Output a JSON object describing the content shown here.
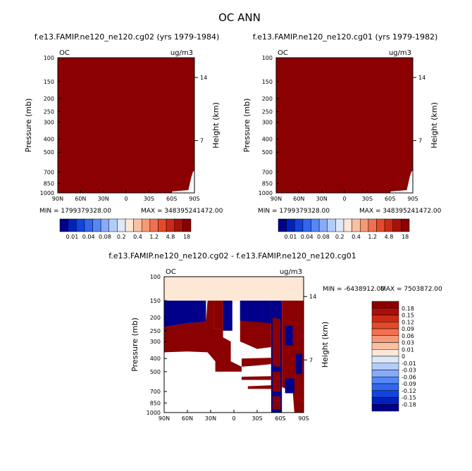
{
  "main_title": "OC ANN",
  "colors": {
    "dark_red": "#8b0000",
    "light_peach": "#fde7d5",
    "navy": "#00008b"
  },
  "chart_data": [
    {
      "id": "panel1",
      "type": "heatmap",
      "title": "f.e13.FAMIP.ne120_ne120.cg02 (yrs 1979-1984)",
      "left_label": "OC",
      "right_label": "ug/m3",
      "xlabel": "",
      "ylabel": "Pressure (mb)",
      "y2label": "Height (km)",
      "x_ticks": [
        "90N",
        "60N",
        "30N",
        "0",
        "30S",
        "60S",
        "90S"
      ],
      "y_ticks": [
        100,
        150,
        200,
        250,
        300,
        400,
        500,
        700,
        850,
        1000
      ],
      "y2_ticks": [
        14,
        7
      ],
      "ylim": [
        100,
        1000
      ],
      "stats": {
        "min": "MIN = 1799379328.00",
        "max": "MAX = 348395241472.00"
      },
      "colorbar": {
        "orientation": "horizontal",
        "labels": [
          "0.01",
          "0.04",
          "0.08",
          "0.2",
          "0.4",
          "1.2",
          "4.8",
          "18"
        ],
        "colors": [
          "#00008b",
          "#0022bb",
          "#1144dd",
          "#3366ee",
          "#5588f5",
          "#88aaf8",
          "#b3cdf9",
          "#dde9fb",
          "#fde7d5",
          "#f9c0a2",
          "#f59a78",
          "#f07050",
          "#e44a2a",
          "#cc2a16",
          "#a8100a",
          "#8b0000"
        ]
      },
      "field": "uniform maximum (dark red) everywhere; missing data near surface south of 60S"
    },
    {
      "id": "panel2",
      "type": "heatmap",
      "title": "f.e13.FAMIP.ne120_ne120.cg01 (yrs 1979-1982)",
      "left_label": "OC",
      "right_label": "ug/m3",
      "xlabel": "",
      "ylabel": "Pressure (mb)",
      "y2label": "Height (km)",
      "x_ticks": [
        "90N",
        "60N",
        "30N",
        "0",
        "30S",
        "60S",
        "90S"
      ],
      "y_ticks": [
        100,
        150,
        200,
        250,
        300,
        400,
        500,
        700,
        850,
        1000
      ],
      "y2_ticks": [
        14,
        7
      ],
      "ylim": [
        100,
        1000
      ],
      "stats": {
        "min": "MIN = 1799379328.00",
        "max": "MAX = 348395241472.00"
      },
      "colorbar": {
        "orientation": "horizontal",
        "labels": [
          "0.01",
          "0.04",
          "0.08",
          "0.2",
          "0.4",
          "1.2",
          "4.8",
          "18"
        ],
        "colors": [
          "#00008b",
          "#0022bb",
          "#1144dd",
          "#3366ee",
          "#5588f5",
          "#88aaf8",
          "#b3cdf9",
          "#dde9fb",
          "#fde7d5",
          "#f9c0a2",
          "#f59a78",
          "#f07050",
          "#e44a2a",
          "#cc2a16",
          "#a8100a",
          "#8b0000"
        ]
      },
      "field": "uniform maximum (dark red) everywhere; missing data near surface south of 60S"
    },
    {
      "id": "panel3",
      "type": "heatmap",
      "title": "f.e13.FAMIP.ne120_ne120.cg02 - f.e13.FAMIP.ne120_ne120.cg01",
      "left_label": "OC",
      "right_label": "ug/m3",
      "xlabel": "",
      "ylabel": "Pressure (mb)",
      "y2label": "Height (km)",
      "x_ticks": [
        "90N",
        "60N",
        "30N",
        "0",
        "30S",
        "60S",
        "90S"
      ],
      "y_ticks": [
        100,
        150,
        200,
        250,
        300,
        400,
        500,
        700,
        850,
        1000
      ],
      "y2_ticks": [
        14,
        7
      ],
      "ylim": [
        100,
        1000
      ],
      "stats": {
        "min": "MIN = -6438912.00",
        "max": "MAX = 7503872.00"
      },
      "colorbar": {
        "orientation": "vertical",
        "labels": [
          "0.18",
          "0.15",
          "0.12",
          "0.09",
          "0.06",
          "0.03",
          "0.01",
          "0",
          "-0.01",
          "-0.03",
          "-0.06",
          "-0.09",
          "-0.12",
          "-0.15",
          "-0.18"
        ],
        "colors": [
          "#8b0000",
          "#a8100a",
          "#cc2a16",
          "#e44a2a",
          "#f07050",
          "#f59a78",
          "#f9c0a2",
          "#fde7d5",
          "#dde9fb",
          "#b3cdf9",
          "#88aaf8",
          "#5588f5",
          "#3366ee",
          "#1144dd",
          "#0022bb",
          "#00008b"
        ]
      },
      "field": "peach (0.01) above 150 mb; mixed blue and red blocks with white (0) regions below"
    }
  ]
}
